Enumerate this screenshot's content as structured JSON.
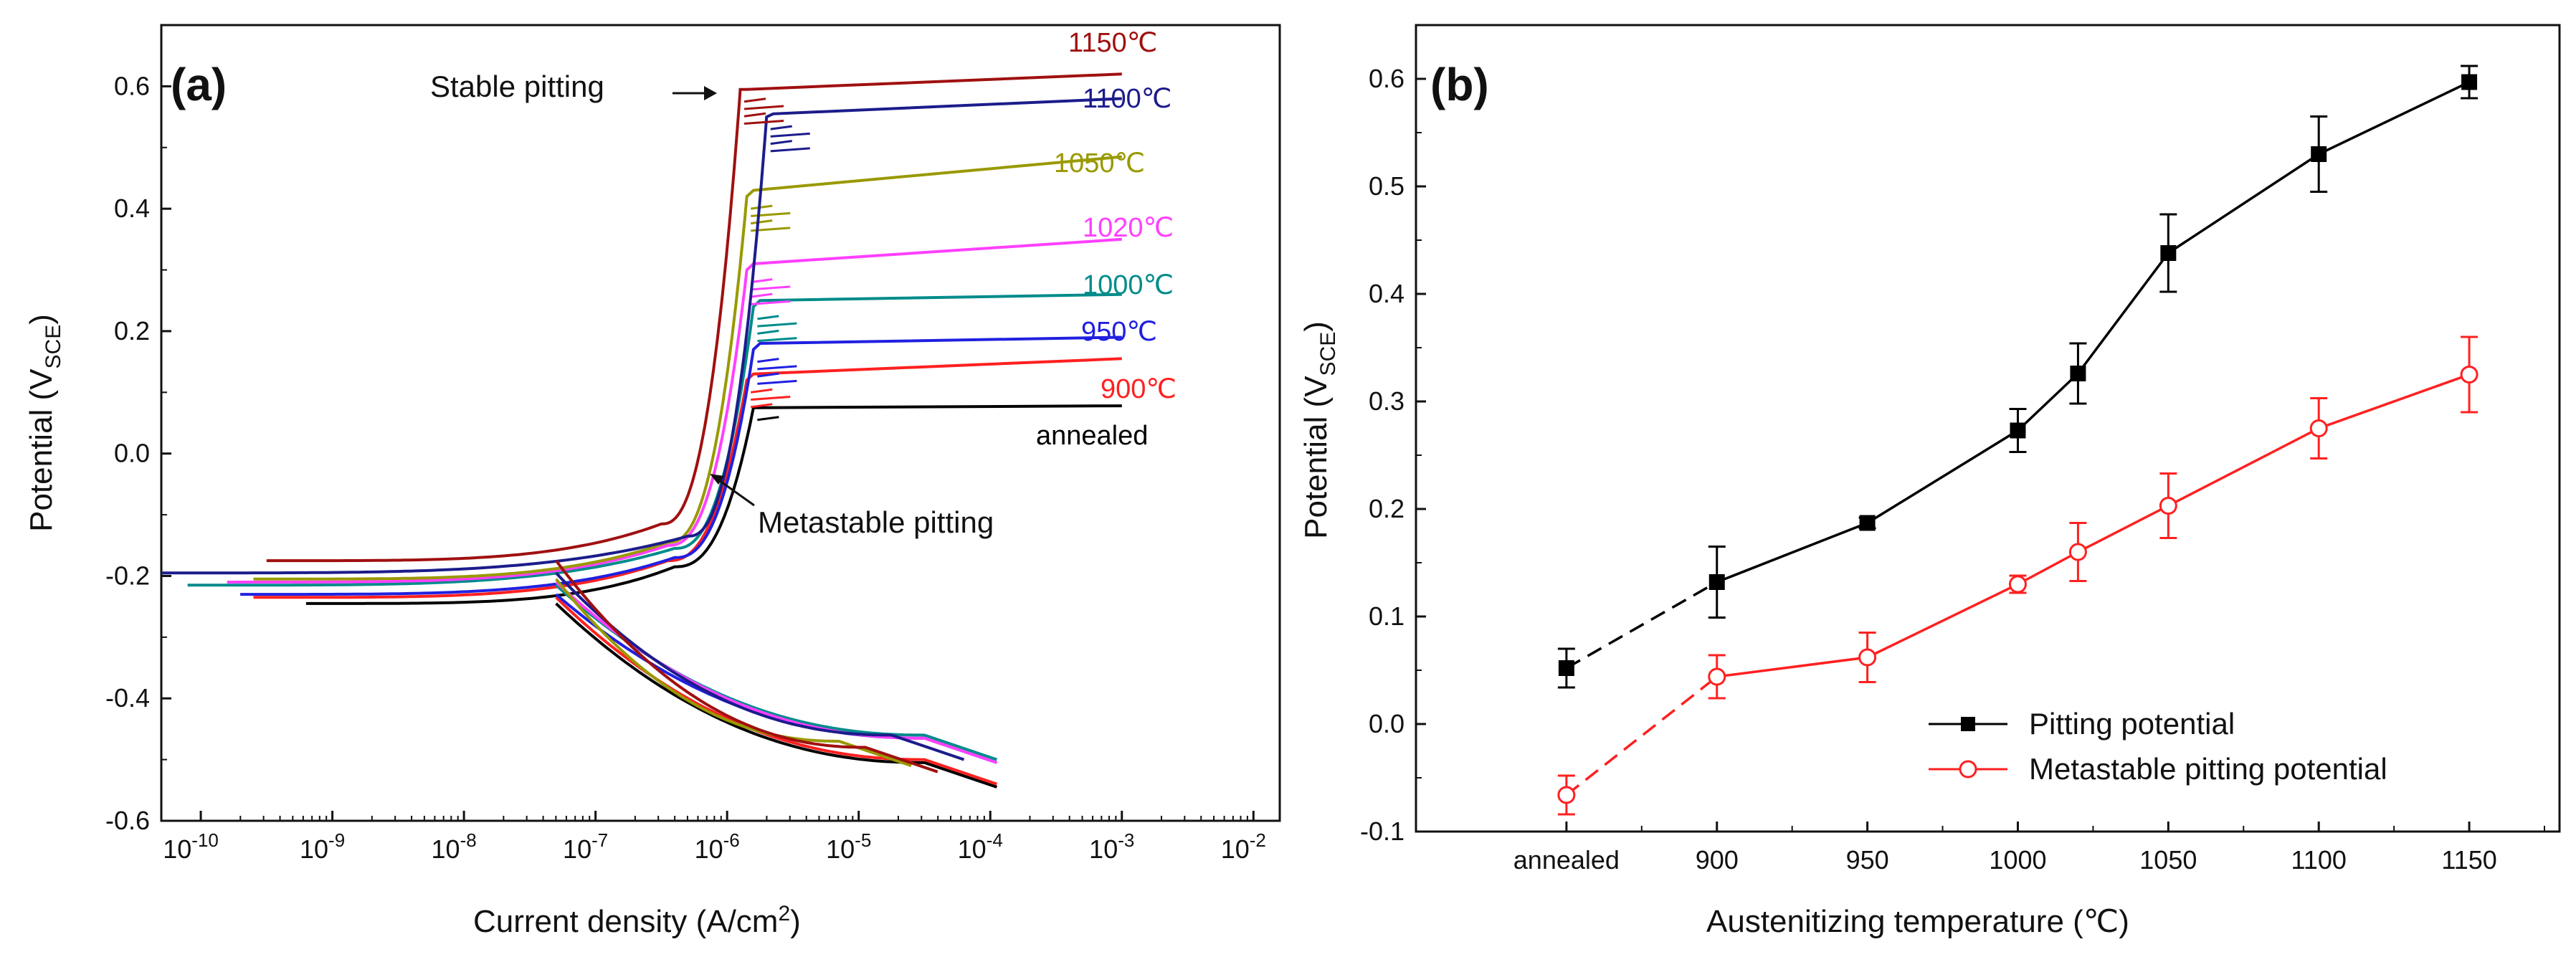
{
  "chart_data": [
    {
      "panel": "(a)",
      "type": "line",
      "xlabel": "Current density (A/cm",
      "xlabel_sup": "2",
      "xlabel_end": ")",
      "ylabel": "Potential (V",
      "ylabel_sub": "SCE",
      "ylabel_end": ")",
      "xscale": "log",
      "xlim_exp": [
        -10.3,
        -1.8
      ],
      "ylim": [
        -0.6,
        0.7
      ],
      "xticks_exp": [
        -10,
        -9,
        -8,
        -7,
        -6,
        -5,
        -4,
        -3,
        -2
      ],
      "xtick_base": "10",
      "xtick_labels": [
        "-10",
        "-9",
        "-8",
        "-7",
        "-6",
        "-5",
        "-4",
        "-3",
        "-2"
      ],
      "yticks": [
        -0.6,
        -0.4,
        -0.2,
        0.0,
        0.2,
        0.4,
        0.6
      ],
      "ytick_labels": [
        "-0.6",
        "-0.4",
        "-0.2",
        "0.0",
        "0.2",
        "0.4",
        "0.6"
      ],
      "series": [
        {
          "name": "annealed",
          "label": "annealed",
          "color": "#000000",
          "Ecorr": -0.245,
          "ilow_exp": -9.2,
          "ipass_exp": -5.8,
          "Epass": 0.075,
          "Epit": 0.075,
          "iend_exp": -3.0,
          "Eend": 0.078,
          "cathode_end_exp": -3.95,
          "Ecath_end": -0.545
        },
        {
          "name": "900",
          "label": "900℃",
          "color": "#ff2020",
          "Ecorr": -0.235,
          "ilow_exp": -9.6,
          "ipass_exp": -5.85,
          "Epass": 0.12,
          "Epit": 0.13,
          "iend_exp": -3.0,
          "Eend": 0.155,
          "cathode_end_exp": -3.95,
          "Ecath_end": -0.54
        },
        {
          "name": "950",
          "label": "950℃",
          "color": "#2020e0",
          "Ecorr": -0.23,
          "ilow_exp": -9.7,
          "ipass_exp": -5.8,
          "Epass": 0.17,
          "Epit": 0.18,
          "iend_exp": -3.0,
          "Eend": 0.19,
          "cathode_end_exp": -3.95,
          "Ecath_end": -0.505
        },
        {
          "name": "1000",
          "label": "1000℃",
          "color": "#008b8b",
          "Ecorr": -0.215,
          "ilow_exp": -10.1,
          "ipass_exp": -5.8,
          "Epass": 0.24,
          "Epit": 0.25,
          "iend_exp": -3.0,
          "Eend": 0.26,
          "cathode_end_exp": -3.95,
          "Ecath_end": -0.5
        },
        {
          "name": "1020",
          "label": "1020℃",
          "color": "#ff40ff",
          "Ecorr": -0.21,
          "ilow_exp": -9.8,
          "ipass_exp": -5.85,
          "Epass": 0.3,
          "Epit": 0.31,
          "iend_exp": -3.0,
          "Eend": 0.35,
          "cathode_end_exp": -3.95,
          "Ecath_end": -0.505
        },
        {
          "name": "1050",
          "label": "1050℃",
          "color": "#999900",
          "Ecorr": -0.205,
          "ilow_exp": -9.6,
          "ipass_exp": -5.85,
          "Epass": 0.42,
          "Epit": 0.43,
          "iend_exp": -3.0,
          "Eend": 0.485,
          "cathode_end_exp": -4.6,
          "Ecath_end": -0.51
        },
        {
          "name": "1100",
          "label": "1100℃",
          "color": "#1c1c8c",
          "Ecorr": -0.195,
          "ilow_exp": -10.3,
          "ipass_exp": -5.7,
          "Epass": 0.55,
          "Epit": 0.555,
          "iend_exp": -3.0,
          "Eend": 0.58,
          "cathode_end_exp": -4.2,
          "Ecath_end": -0.5
        },
        {
          "name": "1150",
          "label": "1150℃",
          "color": "#a01010",
          "Ecorr": -0.175,
          "ilow_exp": -9.5,
          "ipass_exp": -5.9,
          "Epass": 0.595,
          "Epit": 0.595,
          "iend_exp": -3.0,
          "Eend": 0.62,
          "cathode_end_exp": -4.4,
          "Ecath_end": -0.52
        }
      ],
      "annotations": {
        "stable_pitting": "Stable pitting",
        "metastable_pitting": "Metastable pitting"
      }
    },
    {
      "panel": "(b)",
      "type": "line",
      "xlabel": "Austenitizing temperature (℃)",
      "ylabel": "Potential (V",
      "ylabel_sub": "SCE",
      "ylabel_end": ")",
      "ylim": [
        -0.1,
        0.65
      ],
      "yticks": [
        -0.1,
        0.0,
        0.1,
        0.2,
        0.3,
        0.4,
        0.5,
        0.6
      ],
      "ytick_labels": [
        "-0.1",
        "0.0",
        "0.1",
        "0.2",
        "0.3",
        "0.4",
        "0.5",
        "0.6"
      ],
      "xlim": [
        800,
        1180
      ],
      "categories": [
        "annealed",
        "900",
        "950",
        "1000",
        "1020",
        "1050",
        "1100",
        "1150"
      ],
      "x": [
        850,
        900,
        950,
        1000,
        1020,
        1050,
        1100,
        1150
      ],
      "xtick_labels": [
        "annealed",
        "900",
        "950",
        "1000",
        "1050",
        "1100",
        "1150"
      ],
      "xtick_positions": [
        850,
        900,
        950,
        1000,
        1050,
        1100,
        1150
      ],
      "series": [
        {
          "name": "Pitting potential",
          "color": "#000000",
          "marker": "square-filled",
          "values": [
            0.052,
            0.132,
            0.187,
            0.273,
            0.326,
            0.438,
            0.53,
            0.597
          ],
          "errors": [
            0.018,
            0.033,
            0.005,
            0.02,
            0.028,
            0.036,
            0.035,
            0.015
          ]
        },
        {
          "name": "Metastable pitting potential",
          "color": "#ff2020",
          "marker": "circle-open",
          "values": [
            -0.066,
            0.044,
            0.062,
            0.13,
            0.16,
            0.203,
            0.275,
            0.325
          ],
          "errors": [
            0.018,
            0.02,
            0.023,
            0.008,
            0.027,
            0.03,
            0.028,
            0.035
          ]
        }
      ],
      "dashed_first_segment": true,
      "legend_placement": "bottom-right"
    }
  ]
}
